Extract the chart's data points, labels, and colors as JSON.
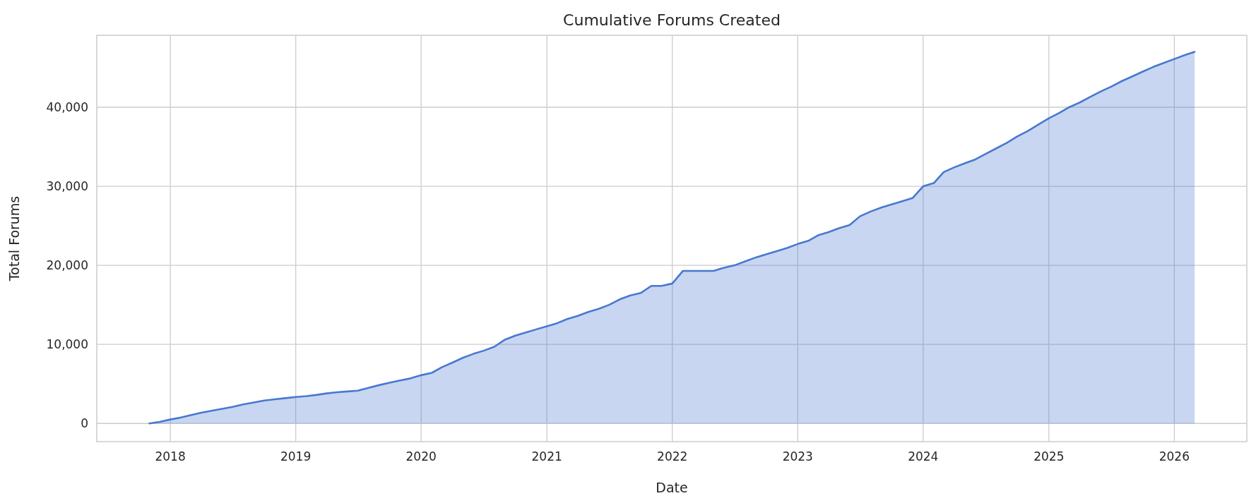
{
  "chart_data": {
    "type": "area",
    "title": "Cumulative Forums Created",
    "xlabel": "Date",
    "ylabel": "Total Forums",
    "x": [
      "2017-11",
      "2017-12",
      "2018-01",
      "2018-02",
      "2018-03",
      "2018-04",
      "2018-05",
      "2018-06",
      "2018-07",
      "2018-08",
      "2018-09",
      "2018-10",
      "2018-11",
      "2018-12",
      "2019-01",
      "2019-02",
      "2019-03",
      "2019-04",
      "2019-05",
      "2019-06",
      "2019-07",
      "2019-08",
      "2019-09",
      "2019-10",
      "2019-11",
      "2019-12",
      "2020-01",
      "2020-02",
      "2020-03",
      "2020-04",
      "2020-05",
      "2020-06",
      "2020-07",
      "2020-08",
      "2020-09",
      "2020-10",
      "2020-11",
      "2020-12",
      "2021-01",
      "2021-02",
      "2021-03",
      "2021-04",
      "2021-05",
      "2021-06",
      "2021-07",
      "2021-08",
      "2021-09",
      "2021-10",
      "2021-11",
      "2021-12",
      "2022-01",
      "2022-02",
      "2022-03",
      "2022-04",
      "2022-05",
      "2022-06",
      "2022-07",
      "2022-08",
      "2022-09",
      "2022-10",
      "2022-11",
      "2022-12",
      "2023-01",
      "2023-02",
      "2023-03",
      "2023-04",
      "2023-05",
      "2023-06",
      "2023-07",
      "2023-08",
      "2023-09",
      "2023-10",
      "2023-11",
      "2023-12",
      "2024-01",
      "2024-02",
      "2024-03",
      "2024-04",
      "2024-05",
      "2024-06",
      "2024-07",
      "2024-08",
      "2024-09",
      "2024-10",
      "2024-11",
      "2024-12",
      "2025-01",
      "2025-02",
      "2025-03",
      "2025-04",
      "2025-05",
      "2025-06",
      "2025-07",
      "2025-08",
      "2025-09",
      "2025-10",
      "2025-11",
      "2025-12",
      "2026-01",
      "2026-02",
      "2026-03"
    ],
    "series": [
      {
        "color": "#4878d0",
        "values": [
          0,
          200,
          500,
          750,
          1050,
          1350,
          1600,
          1850,
          2100,
          2400,
          2650,
          2900,
          3050,
          3200,
          3350,
          3450,
          3600,
          3800,
          3950,
          4050,
          4150,
          4500,
          4850,
          5150,
          5450,
          5700,
          6100,
          6400,
          7100,
          7700,
          8300,
          8800,
          9200,
          9700,
          10600,
          11100,
          11500,
          11900,
          12300,
          12700,
          13200,
          13600,
          14100,
          14500,
          15000,
          15700,
          16200,
          16500,
          17400,
          17400,
          17700,
          19300,
          19300,
          19300,
          19300,
          19700,
          20000,
          20500,
          21000,
          21400,
          21800,
          22200,
          22700,
          23100,
          23800,
          24200,
          24700,
          25100,
          26200,
          26800,
          27300,
          27700,
          28100,
          28500,
          30000,
          30400,
          31800,
          32400,
          32900,
          33400,
          34100,
          34800,
          35500,
          36300,
          37000,
          37800,
          38600,
          39300,
          40000,
          40600,
          41300,
          42000,
          42600,
          43300,
          43900,
          44500,
          45100,
          45600,
          46100,
          46600,
          47000
        ]
      }
    ],
    "xlim": [
      "2017-06-01",
      "2026-07-31"
    ],
    "xticks": [
      {
        "value": "2018-01-01",
        "label": "2018"
      },
      {
        "value": "2019-01-01",
        "label": "2019"
      },
      {
        "value": "2020-01-01",
        "label": "2020"
      },
      {
        "value": "2021-01-01",
        "label": "2021"
      },
      {
        "value": "2022-01-01",
        "label": "2022"
      },
      {
        "value": "2023-01-01",
        "label": "2023"
      },
      {
        "value": "2024-01-01",
        "label": "2024"
      },
      {
        "value": "2025-01-01",
        "label": "2025"
      },
      {
        "value": "2026-01-01",
        "label": "2026"
      }
    ],
    "ylim": [
      -2300,
      49100
    ],
    "yticks": [
      {
        "value": 0,
        "label": "0"
      },
      {
        "value": 10000,
        "label": "10,000"
      },
      {
        "value": 20000,
        "label": "20,000"
      },
      {
        "value": 30000,
        "label": "30,000"
      },
      {
        "value": 40000,
        "label": "40,000"
      }
    ],
    "grid": true
  }
}
